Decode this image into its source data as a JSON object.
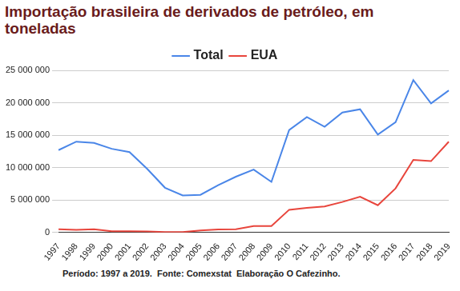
{
  "chart_data": {
    "type": "line",
    "title": "Importação brasileira de derivados de petróleo, em toneladas",
    "caption": "Período: 1997 a 2019.  Fonte: Comexstat  Elaboração O Cafezinho.",
    "categories": [
      "1997",
      "1998",
      "1999",
      "2000",
      "2001",
      "2002",
      "2003",
      "2004",
      "2005",
      "2006",
      "2007",
      "2008",
      "2009",
      "2010",
      "2011",
      "2012",
      "2013",
      "2014",
      "2015",
      "2016",
      "2017",
      "2018",
      "2019"
    ],
    "series": [
      {
        "name": "Total",
        "color": "#4a86e8",
        "values": [
          12700000,
          14000000,
          13800000,
          12900000,
          12400000,
          9800000,
          6900000,
          5700000,
          5800000,
          7300000,
          8600000,
          9700000,
          7800000,
          15800000,
          17800000,
          16300000,
          18500000,
          19000000,
          15100000,
          17000000,
          23500000,
          19900000,
          21900000
        ]
      },
      {
        "name": "EUA",
        "color": "#e8453c",
        "values": [
          500000,
          400000,
          500000,
          200000,
          200000,
          150000,
          50000,
          50000,
          300000,
          450000,
          500000,
          1000000,
          1000000,
          3500000,
          3800000,
          4000000,
          4700000,
          5500000,
          4200000,
          6800000,
          11200000,
          11000000,
          14000000
        ]
      }
    ],
    "ylim": [
      0,
      25000000
    ],
    "yticks": [
      0,
      {
        "value": 5000000,
        "label": "5 000 000"
      },
      {
        "value": 10000000,
        "label": "10 000 000"
      },
      {
        "value": 15000000,
        "label": "15 000 000"
      },
      {
        "value": 20000000,
        "label": "20 000 000"
      },
      {
        "value": 25000000,
        "label": "25 000 000"
      }
    ],
    "grid": true,
    "legend": "top"
  }
}
